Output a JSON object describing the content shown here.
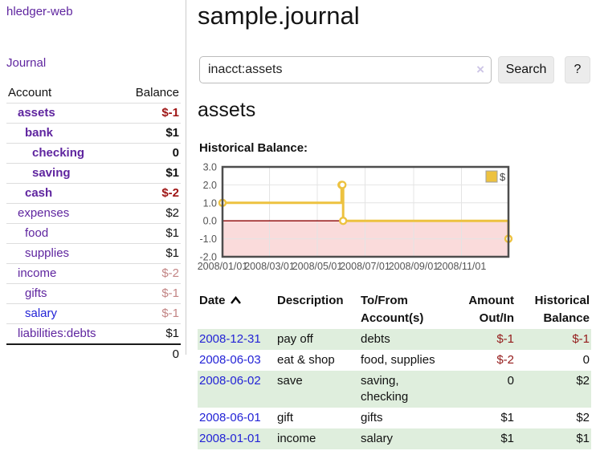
{
  "sidebar": {
    "brand": "hledger-web",
    "nav": {
      "journal": "Journal"
    },
    "accounts": {
      "headers": {
        "account": "Account",
        "balance": "Balance"
      },
      "rows": [
        {
          "name": "assets",
          "balance": "$-1",
          "indent": 1,
          "bold": true,
          "balance_style": "neg-strong",
          "link_style": "purple"
        },
        {
          "name": "bank",
          "balance": "$1",
          "indent": 2,
          "bold": true,
          "balance_style": "",
          "link_style": "purple"
        },
        {
          "name": "checking",
          "balance": "0",
          "indent": 3,
          "bold": true,
          "balance_style": "",
          "link_style": "purple"
        },
        {
          "name": "saving",
          "balance": "$1",
          "indent": 3,
          "bold": true,
          "balance_style": "",
          "link_style": "purple"
        },
        {
          "name": "cash",
          "balance": "$-2",
          "indent": 2,
          "bold": true,
          "balance_style": "neg-strong",
          "link_style": "purple"
        },
        {
          "name": "expenses",
          "balance": "$2",
          "indent": 1,
          "bold": false,
          "balance_style": "",
          "link_style": "purple"
        },
        {
          "name": "food",
          "balance": "$1",
          "indent": 2,
          "bold": false,
          "balance_style": "",
          "link_style": "purple"
        },
        {
          "name": "supplies",
          "balance": "$1",
          "indent": 2,
          "bold": false,
          "balance_style": "",
          "link_style": "purple"
        },
        {
          "name": "income",
          "balance": "$-2",
          "indent": 1,
          "bold": false,
          "balance_style": "neg-soft",
          "link_style": "purple"
        },
        {
          "name": "gifts",
          "balance": "$-1",
          "indent": 2,
          "bold": false,
          "balance_style": "neg-soft",
          "link_style": "purple"
        },
        {
          "name": "salary",
          "balance": "$-1",
          "indent": 2,
          "bold": false,
          "balance_style": "neg-soft",
          "link_style": "blue"
        },
        {
          "name": "liabilities:debts",
          "balance": "$1",
          "indent": 1,
          "bold": false,
          "balance_style": "",
          "link_style": "purple"
        }
      ],
      "total": "0"
    }
  },
  "header": {
    "title": "sample.journal"
  },
  "search": {
    "value": "inacct:assets",
    "clear_icon": "×",
    "button": "Search",
    "help_button": "?"
  },
  "account_page": {
    "heading": "assets",
    "chart_label": "Historical Balance:"
  },
  "chart_data": {
    "type": "line",
    "title": "Historical Balance",
    "steps": true,
    "legend": {
      "label": "$",
      "position": "top-right"
    },
    "ylim": [
      -2,
      3
    ],
    "x_range_days": [
      0,
      365
    ],
    "yticks": [
      {
        "label": "3.0",
        "value": 3
      },
      {
        "label": "2.0",
        "value": 2
      },
      {
        "label": "1.0",
        "value": 1
      },
      {
        "label": "0.0",
        "value": 0
      },
      {
        "label": "-1.0",
        "value": -1
      },
      {
        "label": "-2.0",
        "value": -2
      }
    ],
    "xticks": [
      {
        "label": "2008/01/01",
        "day": 0
      },
      {
        "label": "2008/03/01",
        "day": 60
      },
      {
        "label": "2008/05/01",
        "day": 121
      },
      {
        "label": "2008/07/01",
        "day": 182
      },
      {
        "label": "2008/09/01",
        "day": 244
      },
      {
        "label": "2008/11/01",
        "day": 305
      }
    ],
    "series": [
      {
        "name": "$",
        "color": "#edc240",
        "points": [
          {
            "date": "2008-01-01",
            "day": 0,
            "value": 1
          },
          {
            "date": "2008-06-01",
            "day": 152,
            "value": 2
          },
          {
            "date": "2008-06-02",
            "day": 153,
            "value": 2
          },
          {
            "date": "2008-06-03",
            "day": 154,
            "value": 0
          },
          {
            "date": "2008-12-31",
            "day": 365,
            "value": -1
          }
        ]
      }
    ],
    "negative_region_color": "#fadbdb",
    "zero_line_color": "#8b0000",
    "grid": true
  },
  "register": {
    "columns": [
      "Date",
      "Description",
      "To/From Account(s)",
      "Amount Out/In",
      "Historical Balance"
    ],
    "sort": {
      "column": "Date",
      "direction": "ascending"
    },
    "rows": [
      {
        "date": "2008-12-31",
        "description": "pay off",
        "accounts": "debts",
        "amount": "$-1",
        "amount_style": "neg",
        "balance": "$-1",
        "balance_style": "neg"
      },
      {
        "date": "2008-06-03",
        "description": "eat & shop",
        "accounts": "food, supplies",
        "amount": "$-2",
        "amount_style": "neg",
        "balance": "0",
        "balance_style": ""
      },
      {
        "date": "2008-06-02",
        "description": "save",
        "accounts": "saving, checking",
        "amount": "0",
        "amount_style": "",
        "balance": "$2",
        "balance_style": ""
      },
      {
        "date": "2008-06-01",
        "description": "gift",
        "accounts": "gifts",
        "amount": "$1",
        "amount_style": "",
        "balance": "$2",
        "balance_style": ""
      },
      {
        "date": "2008-01-01",
        "description": "income",
        "accounts": "salary",
        "amount": "$1",
        "amount_style": "",
        "balance": "$1",
        "balance_style": ""
      }
    ]
  }
}
